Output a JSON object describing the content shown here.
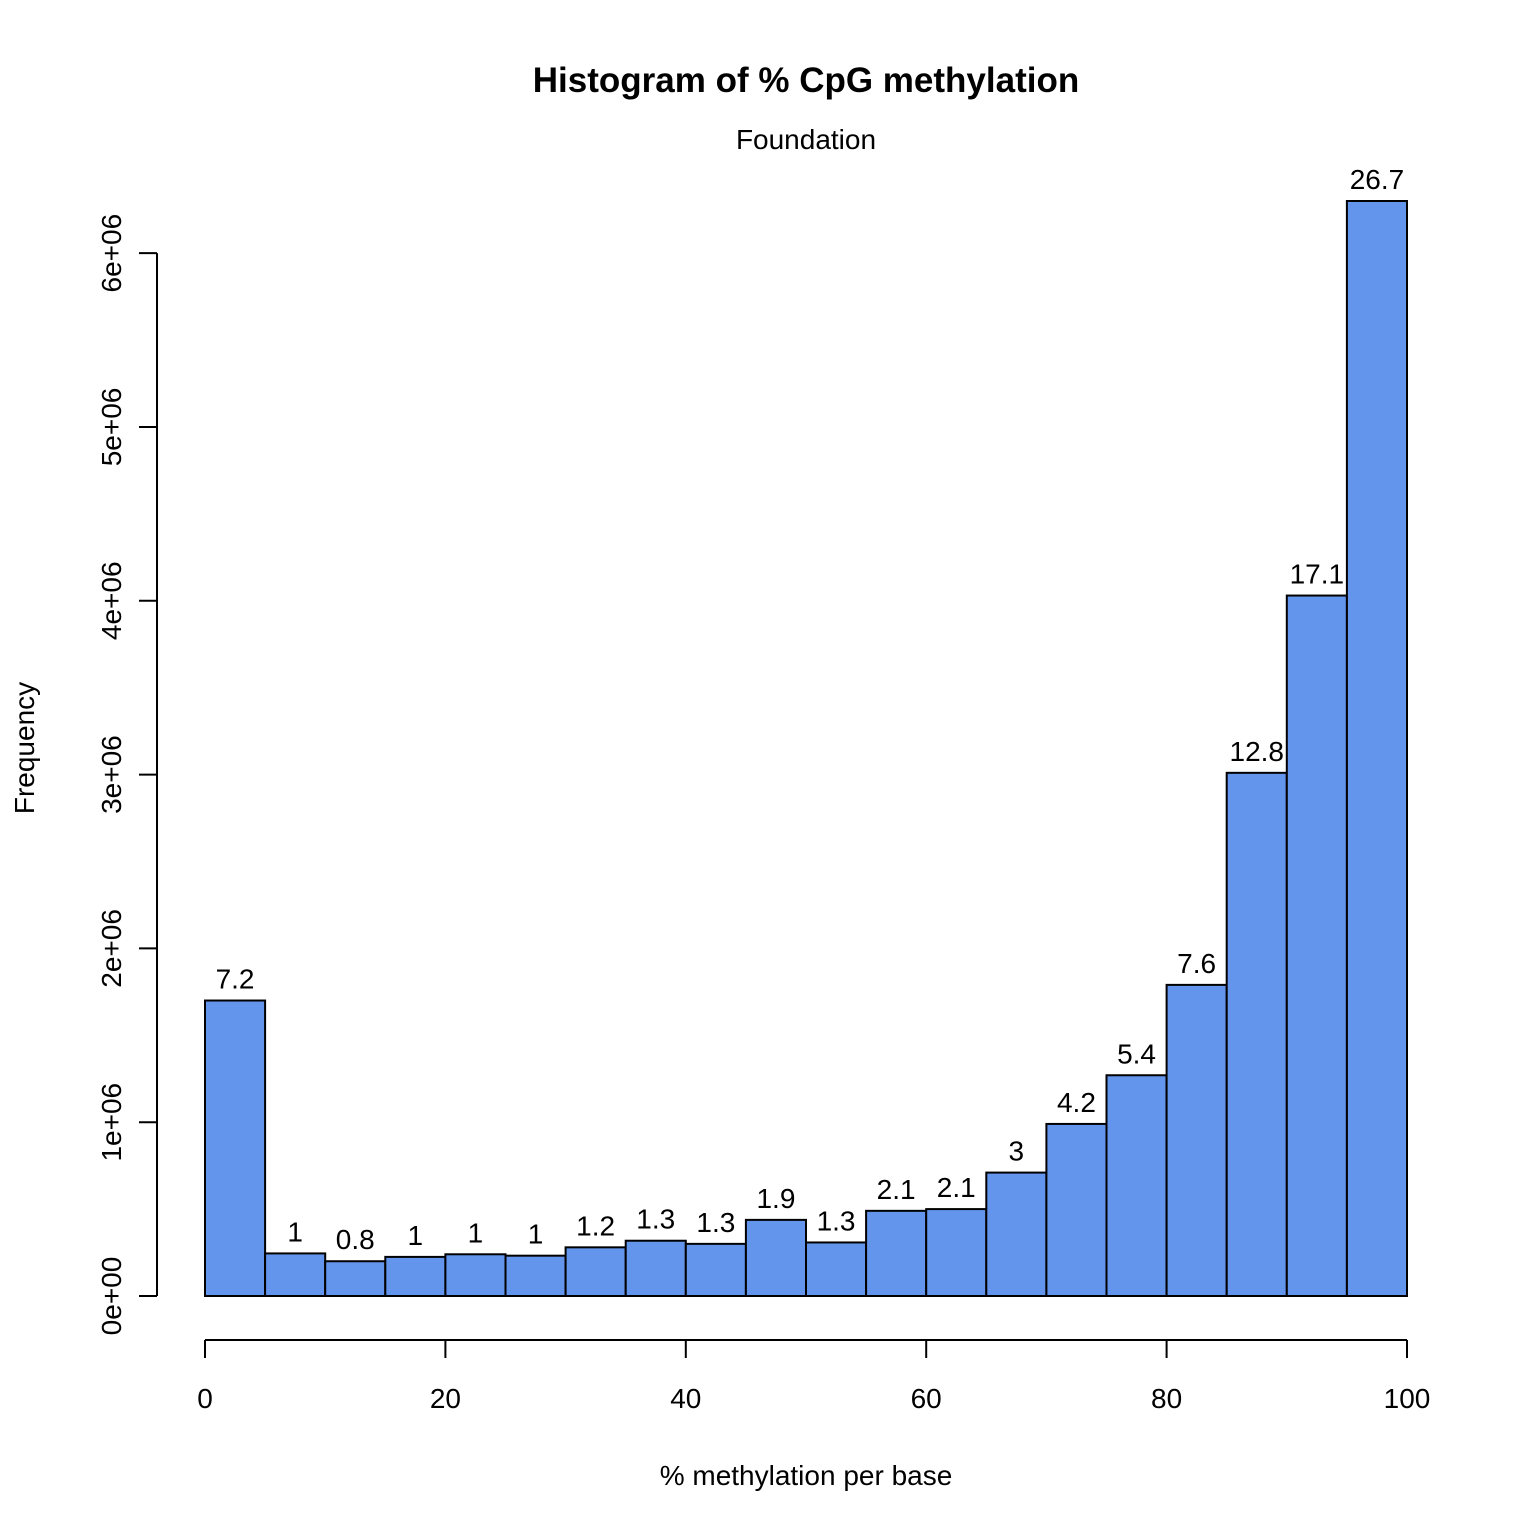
{
  "chart_data": {
    "type": "bar",
    "title": "Histogram of % CpG methylation",
    "subtitle": "Foundation",
    "xlabel": "% methylation per base",
    "ylabel": "Frequency",
    "xlim": [
      0,
      100
    ],
    "ylim": [
      0,
      6300000
    ],
    "bin_width": 5,
    "bins": [
      {
        "start": 0,
        "end": 5,
        "value": 1700000,
        "label": "7.2"
      },
      {
        "start": 5,
        "end": 10,
        "value": 245000,
        "label": "1"
      },
      {
        "start": 10,
        "end": 15,
        "value": 200000,
        "label": "0.8"
      },
      {
        "start": 15,
        "end": 20,
        "value": 225000,
        "label": "1"
      },
      {
        "start": 20,
        "end": 25,
        "value": 240000,
        "label": "1"
      },
      {
        "start": 25,
        "end": 30,
        "value": 232000,
        "label": "1"
      },
      {
        "start": 30,
        "end": 35,
        "value": 280000,
        "label": "1.2"
      },
      {
        "start": 35,
        "end": 40,
        "value": 318000,
        "label": "1.3"
      },
      {
        "start": 40,
        "end": 45,
        "value": 300000,
        "label": "1.3"
      },
      {
        "start": 45,
        "end": 50,
        "value": 438000,
        "label": "1.9"
      },
      {
        "start": 50,
        "end": 55,
        "value": 308000,
        "label": "1.3"
      },
      {
        "start": 55,
        "end": 60,
        "value": 490000,
        "label": "2.1"
      },
      {
        "start": 60,
        "end": 65,
        "value": 500000,
        "label": "2.1"
      },
      {
        "start": 65,
        "end": 70,
        "value": 710000,
        "label": "3"
      },
      {
        "start": 70,
        "end": 75,
        "value": 990000,
        "label": "4.2"
      },
      {
        "start": 75,
        "end": 80,
        "value": 1270000,
        "label": "5.4"
      },
      {
        "start": 80,
        "end": 85,
        "value": 1790000,
        "label": "7.6"
      },
      {
        "start": 85,
        "end": 90,
        "value": 3010000,
        "label": "12.8"
      },
      {
        "start": 90,
        "end": 95,
        "value": 4030000,
        "label": "17.1"
      },
      {
        "start": 95,
        "end": 100,
        "value": 6300000,
        "label": "26.7"
      }
    ],
    "x_ticks": [
      {
        "value": 0,
        "label": "0"
      },
      {
        "value": 20,
        "label": "20"
      },
      {
        "value": 40,
        "label": "40"
      },
      {
        "value": 60,
        "label": "60"
      },
      {
        "value": 80,
        "label": "80"
      },
      {
        "value": 100,
        "label": "100"
      }
    ],
    "y_ticks": [
      {
        "value": 0,
        "label": "0e+00"
      },
      {
        "value": 1000000,
        "label": "1e+06"
      },
      {
        "value": 2000000,
        "label": "2e+06"
      },
      {
        "value": 3000000,
        "label": "3e+06"
      },
      {
        "value": 4000000,
        "label": "4e+06"
      },
      {
        "value": 5000000,
        "label": "5e+06"
      },
      {
        "value": 6000000,
        "label": "6e+06"
      }
    ],
    "bar_color": "#6495ed",
    "grid": false,
    "legend": "none"
  }
}
